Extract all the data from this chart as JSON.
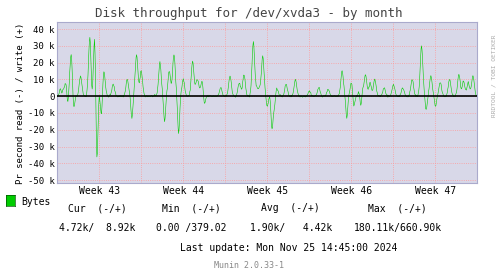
{
  "title": "Disk throughput for /dev/xvda3 - by month",
  "ylabel": "Pr second read (-) / write (+)",
  "xlabel_ticks": [
    "Week 43",
    "Week 44",
    "Week 45",
    "Week 46",
    "Week 47"
  ],
  "ylim": [
    -52000,
    44000
  ],
  "yticks": [
    -50000,
    -40000,
    -30000,
    -20000,
    -10000,
    0,
    10000,
    20000,
    30000,
    40000
  ],
  "ytick_labels": [
    "-50 k",
    "-40 k",
    "-30 k",
    "-20 k",
    "-10 k",
    "0",
    "10 k",
    "20 k",
    "30 k",
    "40 k"
  ],
  "line_color": "#00cc00",
  "zero_line_color": "#000000",
  "bg_color": "#ffffff",
  "plot_bg_color": "#d8d8e8",
  "grid_color": "#ff9999",
  "border_color": "#aaaacc",
  "right_label": "RRDTOOL / TOBI OETIKER",
  "legend_label": "Bytes",
  "legend_color": "#00cc00",
  "last_update": "Last update: Mon Nov 25 14:45:00 2024",
  "munin_version": "Munin 2.0.33-1",
  "n_points": 900,
  "seed": 42
}
